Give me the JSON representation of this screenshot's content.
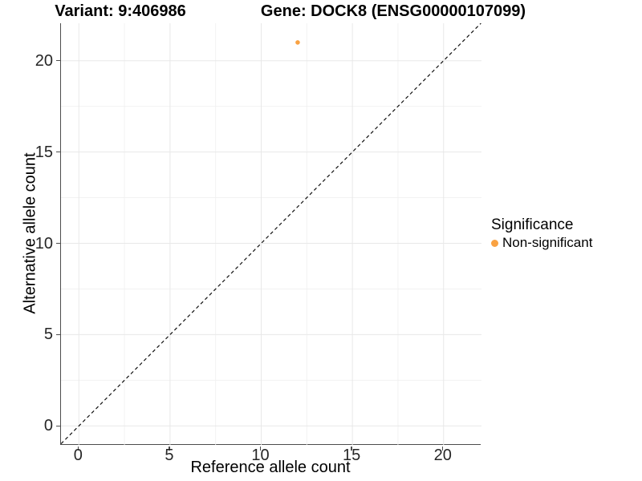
{
  "titles": {
    "variant": "Variant: 9:406986",
    "gene": "Gene: DOCK8 (ENSG00000107099)"
  },
  "chart_data": {
    "type": "scatter",
    "title": "Variant: 9:406986  /  Gene: DOCK8 (ENSG00000107099)",
    "xlabel": "Reference allele count",
    "ylabel": "Alternative allele count",
    "xlim": [
      -0.98,
      22.08
    ],
    "ylim": [
      -1.04,
      22.05
    ],
    "x_ticks": [
      0,
      5,
      10,
      15,
      20
    ],
    "y_ticks": [
      0,
      5,
      10,
      15,
      20
    ],
    "grid_major": [
      0,
      5,
      10,
      15,
      20
    ],
    "grid_minor": [
      2.5,
      7.5,
      12.5,
      17.5
    ],
    "grid": "on",
    "identity_line": {
      "slope": 1,
      "intercept": 0,
      "style": "dashed",
      "color": "#111111"
    },
    "series": [
      {
        "name": "Non-significant",
        "color": "#F9A242",
        "points": [
          {
            "x": 12,
            "y": 21
          }
        ]
      }
    ],
    "legend_position": "right"
  },
  "legend": {
    "title": "Significance",
    "items": [
      {
        "label": "Non-significant",
        "color": "#F9A242"
      }
    ]
  },
  "style": {
    "grid_major_color": "#e8e8e8",
    "grid_minor_color": "#f0f0f0",
    "axis_line_color": "#4d4d4d",
    "point_radius": 2.8,
    "legend_dot_color": "#F9A242"
  }
}
